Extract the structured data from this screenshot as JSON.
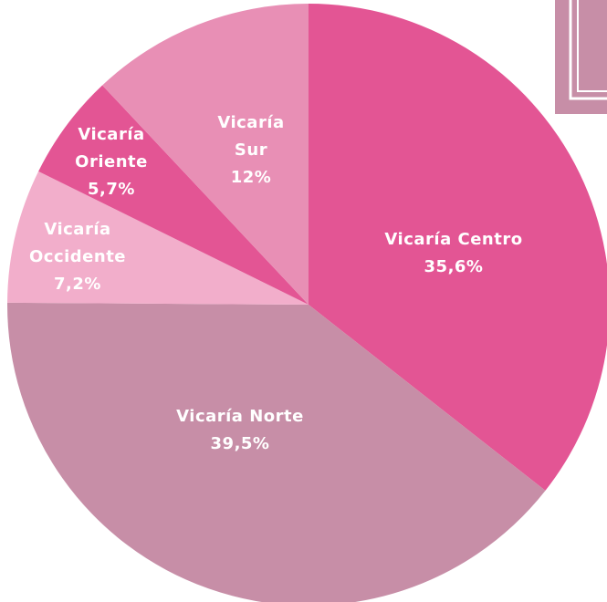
{
  "chart_data": {
    "type": "pie",
    "categories": [
      "Vicaría Centro",
      "Vicaría Norte",
      "Vicaría Occidente",
      "Vicaría Oriente",
      "Vicaría Sur"
    ],
    "values": [
      35.6,
      39.5,
      7.2,
      5.7,
      12
    ],
    "value_labels": [
      "35,6%",
      "39,5%",
      "7,2%",
      "5,7%",
      "12%"
    ],
    "colors": [
      "#e35594",
      "#c78ea7",
      "#f2aecb",
      "#e35594",
      "#e88fb5"
    ]
  }
}
